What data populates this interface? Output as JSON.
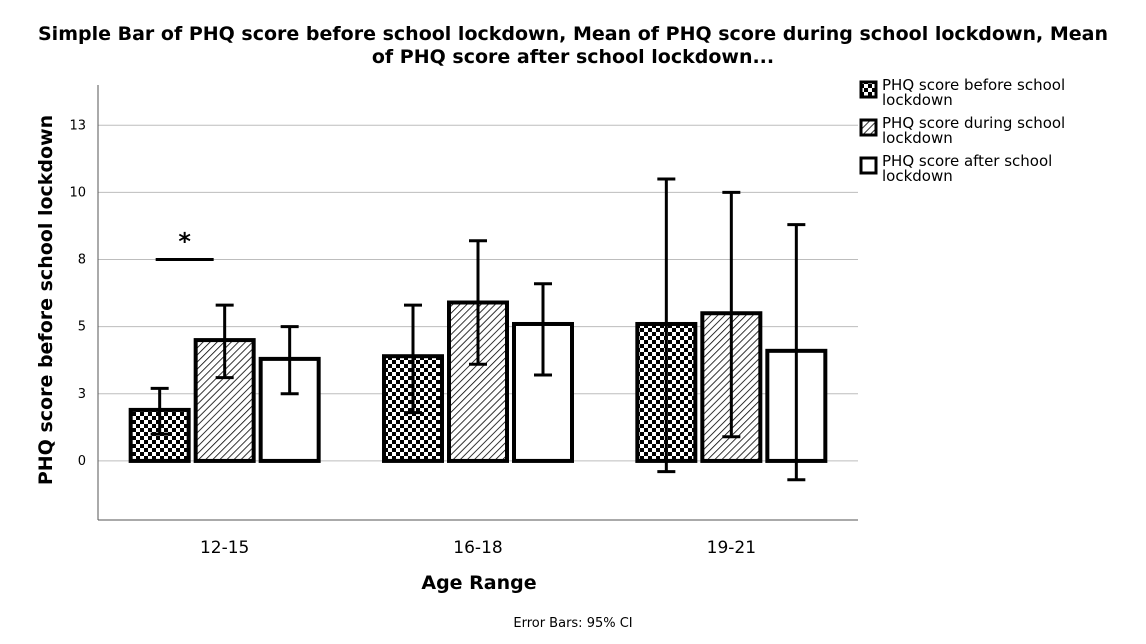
{
  "chart_data": {
    "type": "bar",
    "title_line1": "Simple Bar of PHQ score before school lockdown, Mean of PHQ score during school lockdown, Mean",
    "title_line2": "of PHQ score after school lockdown...",
    "xlabel": "Age Range",
    "ylabel": "PHQ score before school lockdown",
    "footnote": "Error Bars: 95% CI",
    "categories": [
      "12-15",
      "16-18",
      "19-21"
    ],
    "ylim": [
      -2.2,
      14
    ],
    "yticks": [
      0,
      2.5,
      5,
      7.5,
      10,
      12.5
    ],
    "ytick_labels": [
      "0",
      "3",
      "5",
      "8",
      "10",
      "13"
    ],
    "grid": true,
    "legend_position": "top-right",
    "series": [
      {
        "name": "PHQ score before school lockdown",
        "legend_lines": [
          "PHQ score before school",
          "lockdown"
        ],
        "pattern": "checker",
        "values": [
          1.9,
          3.9,
          5.1
        ],
        "ci_low": [
          1.0,
          1.8,
          -0.4
        ],
        "ci_high": [
          2.7,
          5.8,
          10.5
        ]
      },
      {
        "name": "PHQ score during school lockdown",
        "legend_lines": [
          "PHQ score during school",
          "lockdown"
        ],
        "pattern": "hatch",
        "values": [
          4.5,
          5.9,
          5.5
        ],
        "ci_low": [
          3.1,
          3.6,
          0.9
        ],
        "ci_high": [
          5.8,
          8.2,
          10.0
        ]
      },
      {
        "name": "PHQ score after school lockdown",
        "legend_lines": [
          "PHQ score after school",
          "lockdown"
        ],
        "pattern": "white",
        "values": [
          3.8,
          5.1,
          4.1
        ],
        "ci_low": [
          2.5,
          3.2,
          -0.7
        ],
        "ci_high": [
          5.0,
          6.6,
          8.8
        ]
      }
    ],
    "annotation": {
      "text": "*",
      "category": "12-15",
      "y": 7.5
    }
  }
}
